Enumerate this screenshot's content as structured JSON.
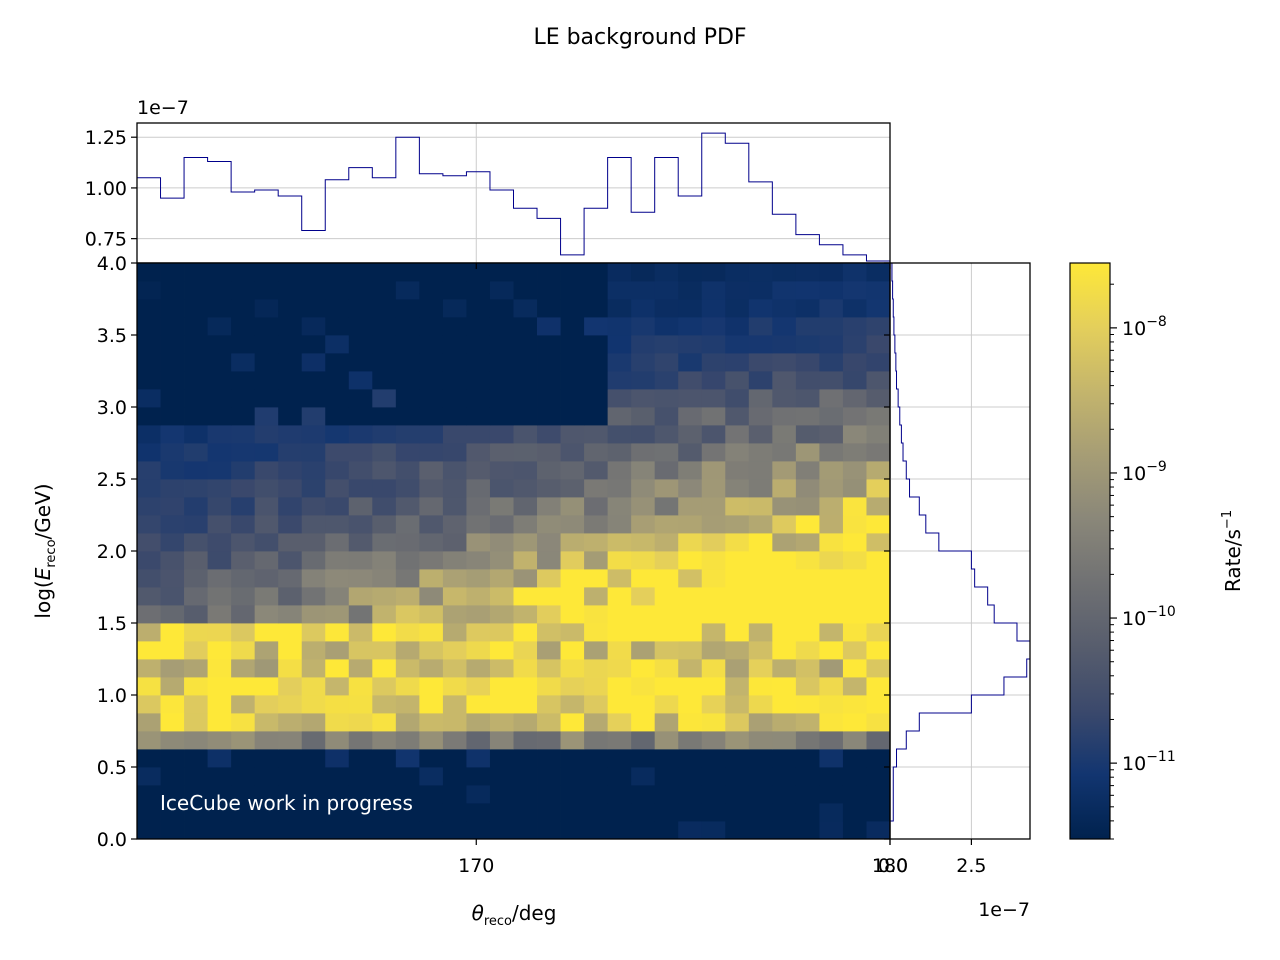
{
  "chart_data": {
    "type": "heatmap",
    "title": "LE background PDF",
    "xlabel": "θ_reco/deg",
    "xlabel_main": "θ",
    "xlabel_sub": "reco",
    "xlabel_tail": "/deg",
    "ylabel_pre": "log(",
    "ylabel_main": "E",
    "ylabel_sub": "reco",
    "ylabel_tail": "/GeV)",
    "watermark": "IceCube work in progress",
    "xlim": [
      161.8,
      180
    ],
    "ylim": [
      0,
      4
    ],
    "n_x_bins": 32,
    "n_y_bins": 32,
    "x_ticks": [
      "170",
      "180"
    ],
    "y_ticks": [
      "0.0",
      "0.5",
      "1.0",
      "1.5",
      "2.0",
      "2.5",
      "3.0",
      "3.5",
      "4.0"
    ],
    "energy_profile_weights": [
      0.05,
      0.05,
      0.05,
      0.05,
      0.1,
      0.5,
      0.9,
      1.0,
      0.95,
      0.85,
      0.9,
      0.95,
      0.9,
      0.85,
      0.75,
      0.65,
      0.55,
      0.5,
      0.45,
      0.4,
      0.35,
      0.3,
      0.25,
      0.25,
      0.2,
      0.15,
      0.12,
      0.1,
      0.08,
      0.06,
      0.05,
      0.04
    ],
    "top_marginal": {
      "values": [
        1.05,
        0.95,
        1.15,
        1.13,
        0.98,
        0.99,
        0.96,
        0.79,
        1.04,
        1.1,
        1.05,
        1.25,
        1.07,
        1.06,
        1.08,
        0.99,
        0.9,
        0.85,
        0.67,
        0.9,
        1.15,
        0.88,
        1.15,
        0.96,
        1.27,
        1.22,
        1.03,
        0.87,
        0.77,
        0.72,
        0.67,
        0.64
      ],
      "ylim": [
        0.63,
        1.32
      ],
      "y_ticks": [
        "0.75",
        "1.00",
        "1.25"
      ],
      "y_tick_values": [
        0.75,
        1.0,
        1.25
      ],
      "offset": "1e−7"
    },
    "right_marginal": {
      "values": [
        0.0,
        0.1,
        0.1,
        0.1,
        0.2,
        0.5,
        0.9,
        2.5,
        3.5,
        4.2,
        4.3,
        3.9,
        3.2,
        3.0,
        2.6,
        2.5,
        1.5,
        1.1,
        0.9,
        0.6,
        0.5,
        0.4,
        0.35,
        0.3,
        0.25,
        0.2,
        0.18,
        0.15,
        0.12,
        0.1,
        0.08,
        0.06
      ],
      "xlim": [
        0,
        4.3
      ],
      "x_ticks": [
        "0.0",
        "2.5"
      ],
      "x_tick_values": [
        0.0,
        2.5
      ],
      "offset": "1e−7"
    },
    "colorbar": {
      "label": "Rate/s",
      "label_sup": "−1",
      "scale": "log",
      "range": [
        3e-12,
        2.8e-08
      ],
      "ticks": [
        {
          "base": "10",
          "exp": "−11",
          "value": -11
        },
        {
          "base": "10",
          "exp": "−10",
          "value": -10
        },
        {
          "base": "10",
          "exp": "−9",
          "value": -9
        },
        {
          "base": "10",
          "exp": "−8",
          "value": -8
        }
      ],
      "colors": [
        "#00224e",
        "#123570",
        "#3b496c",
        "#575d6d",
        "#707173",
        "#8a8779",
        "#a69d75",
        "#c4b56c",
        "#e4cf5b",
        "#fee838"
      ]
    },
    "series_color": "#00008b"
  }
}
